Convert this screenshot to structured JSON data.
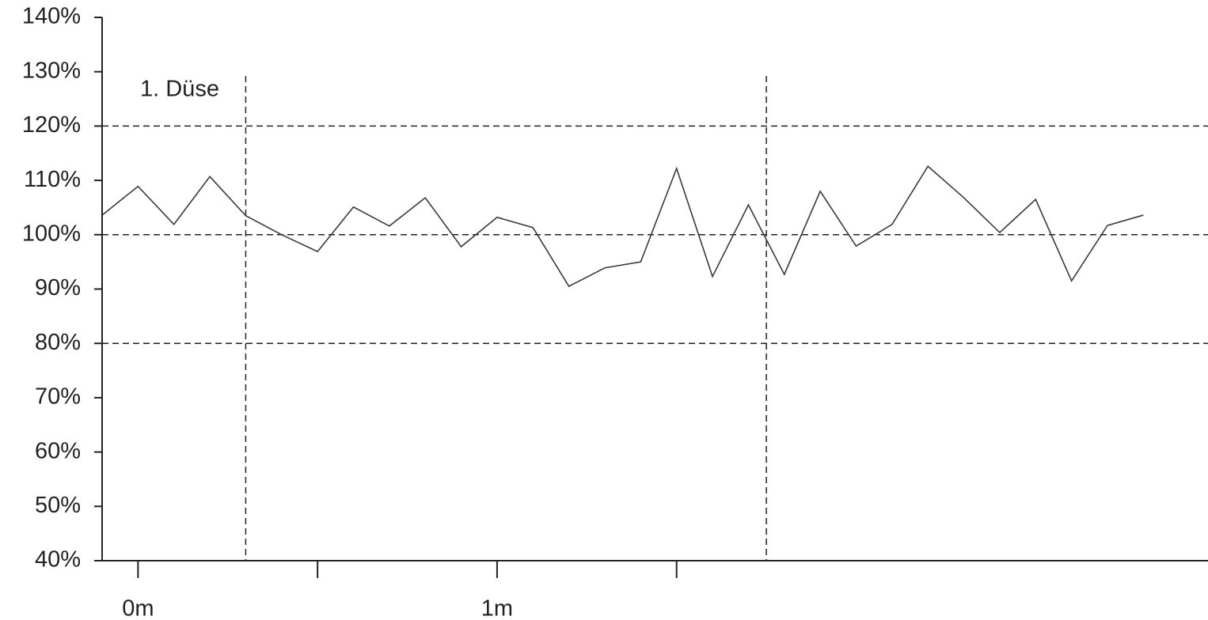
{
  "chart_data": {
    "type": "line",
    "x": [
      -0.1,
      0,
      0.1,
      0.2,
      0.3,
      0.4,
      0.5,
      0.6,
      0.7,
      0.8,
      0.9,
      1.0,
      1.1,
      1.2,
      1.3,
      1.4,
      1.5,
      1.6,
      1.7,
      1.8,
      1.9,
      2.0,
      2.1,
      2.2,
      2.3,
      2.4,
      2.5,
      2.6,
      2.7,
      2.8
    ],
    "values": [
      103.6,
      108.9,
      101.9,
      110.7,
      103.5,
      100.0,
      96.9,
      105.1,
      101.6,
      106.8,
      97.8,
      103.2,
      101.3,
      90.5,
      93.9,
      95.0,
      112.2,
      92.3,
      105.5,
      92.7,
      108.0,
      97.9,
      101.9,
      112.6,
      106.8,
      100.4,
      106.5,
      91.5,
      101.7,
      103.6
    ],
    "color": "#3a3a3a",
    "xlim": [
      -0.1,
      2.98
    ],
    "xticks": [
      {
        "value": 0,
        "label": "0m"
      },
      {
        "value": 0.5,
        "label": null
      },
      {
        "value": 1,
        "label": "1m"
      },
      {
        "value": 1.5,
        "label": null
      }
    ],
    "ylim": [
      40,
      140
    ],
    "yticks": [
      {
        "value": 40,
        "label": "40%"
      },
      {
        "value": 50,
        "label": "50%"
      },
      {
        "value": 60,
        "label": "60%"
      },
      {
        "value": 70,
        "label": "70%"
      },
      {
        "value": 80,
        "label": "80%"
      },
      {
        "value": 90,
        "label": "90%"
      },
      {
        "value": 100,
        "label": "100%"
      },
      {
        "value": 110,
        "label": "110%"
      },
      {
        "value": 120,
        "label": "120%"
      },
      {
        "value": 130,
        "label": "130%"
      },
      {
        "value": 140,
        "label": "140%"
      }
    ],
    "hlines": [
      80,
      100,
      120
    ],
    "vlines": [
      0.3,
      1.75
    ],
    "annotation": "1. Düse"
  }
}
